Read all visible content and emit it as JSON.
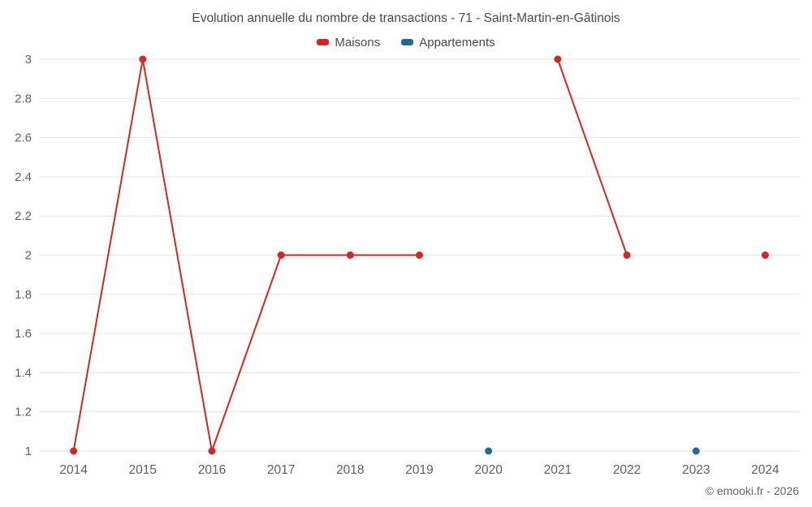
{
  "footer": {
    "copyright": "© emooki.fr - 2026"
  },
  "chart_data": {
    "type": "line",
    "title": "Evolution annuelle du nombre de transactions - 71 - Saint-Martin-en-Gâtinois",
    "x": [
      "2014",
      "2015",
      "2016",
      "2017",
      "2018",
      "2019",
      "2020",
      "2021",
      "2022",
      "2023",
      "2024"
    ],
    "series": [
      {
        "name": "Maisons",
        "color": "#d7261f",
        "values": [
          1,
          3,
          1,
          2,
          2,
          2,
          null,
          3,
          2,
          null,
          2
        ]
      },
      {
        "name": "Appartements",
        "color": "#1a6d9b",
        "values": [
          null,
          null,
          null,
          null,
          null,
          null,
          1,
          null,
          null,
          1,
          null
        ]
      }
    ],
    "xlabel": "",
    "ylabel": "",
    "ylim": [
      1,
      3
    ],
    "ytick_step": 0.2,
    "grid": true,
    "gridline_color": "#e6e6e6",
    "tick_label_color": "#606060",
    "legend_position": "top"
  }
}
